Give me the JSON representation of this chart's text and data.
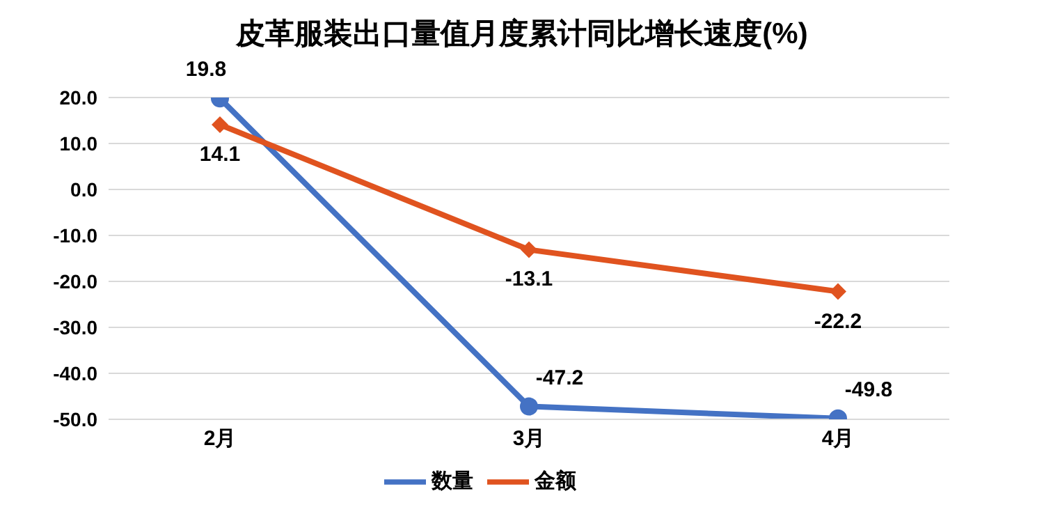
{
  "chart_data": {
    "type": "line",
    "title": "皮革服装出口量值月度累计同比增长速度(%)",
    "categories": [
      "2月",
      "3月",
      "4月"
    ],
    "series": [
      {
        "name": "数量",
        "color": "#4472c4",
        "values": [
          19.8,
          -47.2,
          -49.8
        ],
        "marker": "circle"
      },
      {
        "name": "金额",
        "color": "#e0531f",
        "values": [
          14.1,
          -13.1,
          -22.2
        ],
        "marker": "diamond"
      }
    ],
    "ylim": [
      -50,
      20
    ],
    "yticks": [
      {
        "value": 20,
        "label": "20.0"
      },
      {
        "value": 10,
        "label": "10.0"
      },
      {
        "value": 0,
        "label": "0.0"
      },
      {
        "value": -10,
        "label": "-10.0"
      },
      {
        "value": -20,
        "label": "-20.0"
      },
      {
        "value": -30,
        "label": "-30.0"
      },
      {
        "value": -40,
        "label": "-40.0"
      },
      {
        "value": -50,
        "label": "-50.0"
      }
    ],
    "grid": "y",
    "legend": "bottom",
    "data_labels": true,
    "line_style": "solid"
  }
}
